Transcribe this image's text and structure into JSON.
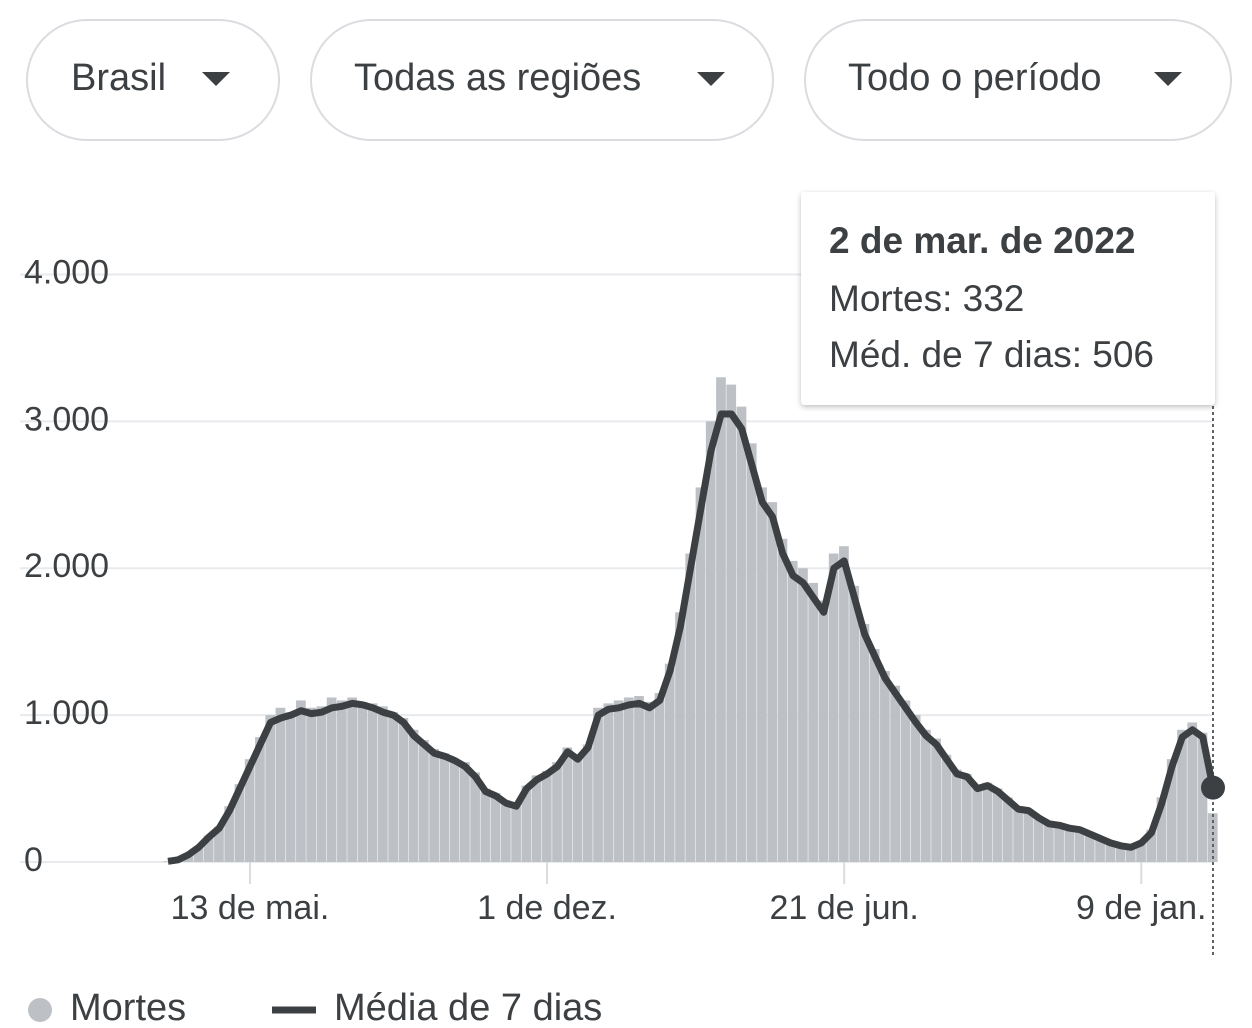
{
  "filters": [
    "Brasil",
    "Todas as regiões",
    "Todo o período"
  ],
  "tooltip": {
    "title": "2 de mar. de 2022",
    "lines": [
      "Mortes: 332",
      "Méd. de 7 dias: 506"
    ]
  },
  "chart_data": {
    "type": "bar-line",
    "categories": [
      null,
      null,
      null,
      null,
      null,
      null,
      null,
      null,
      "13 de mai.",
      null,
      null,
      null,
      null,
      null,
      null,
      null,
      null,
      null,
      null,
      null,
      null,
      null,
      null,
      null,
      null,
      null,
      null,
      null,
      null,
      null,
      null,
      null,
      null,
      null,
      null,
      null,
      null,
      "1 de dez.",
      null,
      null,
      null,
      null,
      null,
      null,
      null,
      null,
      null,
      null,
      null,
      null,
      null,
      null,
      null,
      null,
      null,
      null,
      null,
      null,
      null,
      null,
      null,
      null,
      null,
      null,
      null,
      null,
      "21 de jun.",
      null,
      null,
      null,
      null,
      null,
      null,
      null,
      null,
      null,
      null,
      null,
      null,
      null,
      null,
      null,
      null,
      null,
      null,
      null,
      null,
      null,
      null,
      null,
      null,
      null,
      null,
      null,
      null,
      "9 de jan.",
      null,
      null,
      null,
      null,
      null,
      null,
      null
    ],
    "series": [
      {
        "name": "Mortes",
        "color": "#bdc1c6",
        "values": [
          4,
          12,
          45,
          95,
          180,
          240,
          380,
          530,
          700,
          850,
          1000,
          1050,
          1020,
          1100,
          1050,
          1060,
          1120,
          1100,
          1120,
          1090,
          1080,
          1060,
          1020,
          980,
          900,
          830,
          770,
          740,
          700,
          680,
          610,
          500,
          470,
          420,
          390,
          520,
          590,
          620,
          680,
          780,
          720,
          800,
          1050,
          1080,
          1100,
          1120,
          1130,
          1090,
          1150,
          1350,
          1700,
          2100,
          2550,
          3000,
          3300,
          3250,
          3100,
          2850,
          2550,
          2450,
          2200,
          2050,
          2000,
          1900,
          1780,
          2100,
          2150,
          1880,
          1620,
          1450,
          1300,
          1200,
          1100,
          1000,
          900,
          840,
          730,
          630,
          600,
          520,
          540,
          500,
          440,
          380,
          360,
          310,
          270,
          260,
          240,
          230,
          200,
          170,
          140,
          115,
          105,
          140,
          220,
          440,
          700,
          900,
          950,
          880,
          332
        ]
      },
      {
        "name": "Média de 7 dias",
        "color": "#3c4043",
        "values": [
          5,
          15,
          50,
          100,
          170,
          230,
          350,
          500,
          650,
          800,
          950,
          980,
          1000,
          1030,
          1010,
          1020,
          1050,
          1060,
          1080,
          1070,
          1050,
          1020,
          1000,
          950,
          860,
          800,
          740,
          720,
          690,
          650,
          580,
          480,
          450,
          400,
          380,
          500,
          560,
          600,
          650,
          750,
          700,
          780,
          1000,
          1040,
          1050,
          1070,
          1080,
          1050,
          1100,
          1300,
          1600,
          2000,
          2400,
          2800,
          3050,
          3050,
          2950,
          2700,
          2450,
          2350,
          2100,
          1950,
          1900,
          1800,
          1700,
          2000,
          2050,
          1800,
          1550,
          1400,
          1250,
          1150,
          1050,
          950,
          860,
          800,
          700,
          600,
          580,
          500,
          520,
          480,
          420,
          360,
          350,
          300,
          260,
          250,
          230,
          220,
          190,
          160,
          130,
          110,
          100,
          130,
          200,
          400,
          650,
          850,
          900,
          850,
          506
        ]
      }
    ],
    "ylim": [
      0,
      4500
    ],
    "yticks": [
      0,
      {
        "value": 1000,
        "label": "1.000"
      },
      {
        "value": 2000,
        "label": "2.000"
      },
      {
        "value": 3000,
        "label": "3.000"
      },
      {
        "value": 4000,
        "label": "4.000"
      }
    ],
    "grid": true
  }
}
